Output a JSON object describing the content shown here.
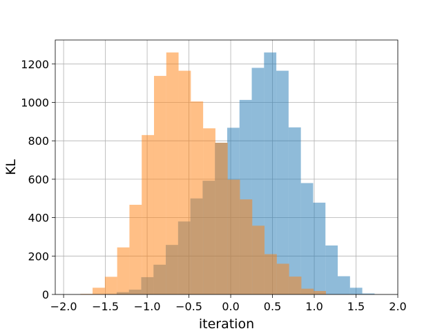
{
  "chart_data": {
    "type": "bar",
    "title": "",
    "xlabel": "iteration",
    "ylabel": "KL",
    "xlim": [
      -2.1,
      2.0
    ],
    "ylim": [
      0,
      1325
    ],
    "grid": true,
    "bin_width": 0.147,
    "x_ticks": [
      "−2.0",
      "−1.5",
      "−1.0",
      "−0.5",
      "0.0",
      "0.5",
      "1.0",
      "1.5",
      "2.0"
    ],
    "y_ticks": [
      "0",
      "200",
      "400",
      "600",
      "800",
      "1000",
      "1200"
    ],
    "series": [
      {
        "color": "#1f77b4",
        "alpha": 0.5,
        "bin_edges": [
          -2.1,
          -1.953,
          -1.806,
          -1.659,
          -1.512,
          -1.365,
          -1.218,
          -1.071,
          -0.924,
          -0.777,
          -0.63,
          -0.483,
          -0.336,
          -0.189,
          -0.042,
          0.105,
          0.252,
          0.399,
          0.546,
          0.693,
          0.84,
          0.987,
          1.134,
          1.281,
          1.428,
          1.575,
          1.722
        ],
        "values": [
          0,
          0,
          0,
          0,
          2,
          12,
          25,
          90,
          155,
          258,
          380,
          500,
          592,
          790,
          868,
          1013,
          1180,
          1260,
          1165,
          870,
          580,
          478,
          255,
          95,
          35,
          5
        ]
      },
      {
        "color": "#ff7f0e",
        "alpha": 0.5,
        "bin_edges": [
          -1.8,
          -1.653,
          -1.506,
          -1.359,
          -1.212,
          -1.065,
          -0.918,
          -0.771,
          -0.624,
          -0.477,
          -0.33,
          -0.183,
          -0.036,
          0.111,
          0.258,
          0.405,
          0.552,
          0.699,
          0.846,
          0.993,
          1.14,
          1.287
        ],
        "values": [
          3,
          35,
          92,
          245,
          467,
          830,
          1138,
          1260,
          1165,
          1005,
          865,
          790,
          598,
          495,
          358,
          210,
          160,
          93,
          30,
          18,
          0
        ]
      }
    ]
  }
}
